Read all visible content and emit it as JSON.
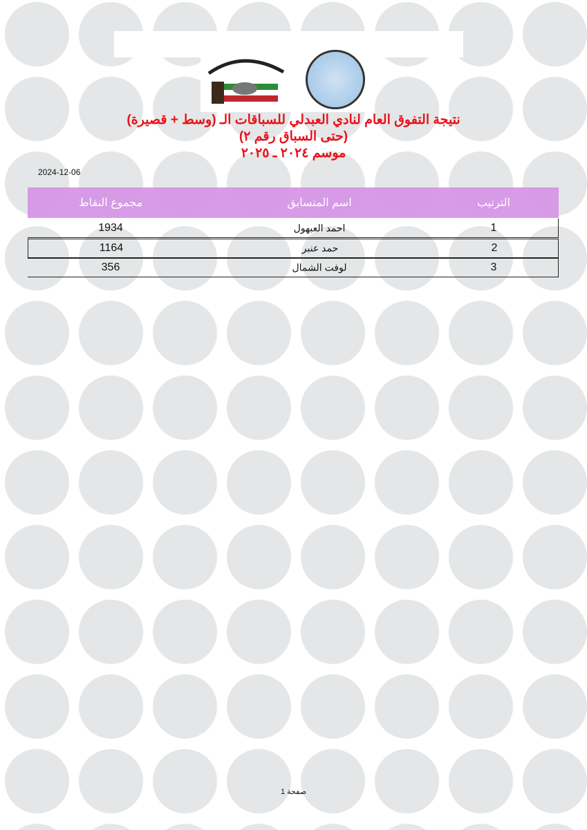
{
  "header": {
    "logos": [
      "Kuwait Racing Pigeon Club",
      "Kuwait Federation for Racing Pigeons"
    ],
    "title_line1": "نتيجة التفوق العام لنادي العبدلي للسباقات الـ (وسط + قصيرة)",
    "title_line2": "(حتى السباق رقم ٢)",
    "title_line3": "موسم ٢٠٢٤ ـ ٢٠٢٥",
    "title_color": "#e8121b"
  },
  "date": "2024-12-06",
  "table": {
    "header_color": "#d596e6",
    "columns": [
      "الترتيب",
      "اسم المتسابق",
      "مجموع النقاط"
    ],
    "rows": [
      {
        "rank": "1",
        "name": "احمد العبهول",
        "points": "1934"
      },
      {
        "rank": "2",
        "name": "حمد عنبر",
        "points": "1164"
      },
      {
        "rank": "3",
        "name": "لوفت الشمال",
        "points": "356"
      }
    ]
  },
  "footer": {
    "page": "صفحة 1"
  }
}
